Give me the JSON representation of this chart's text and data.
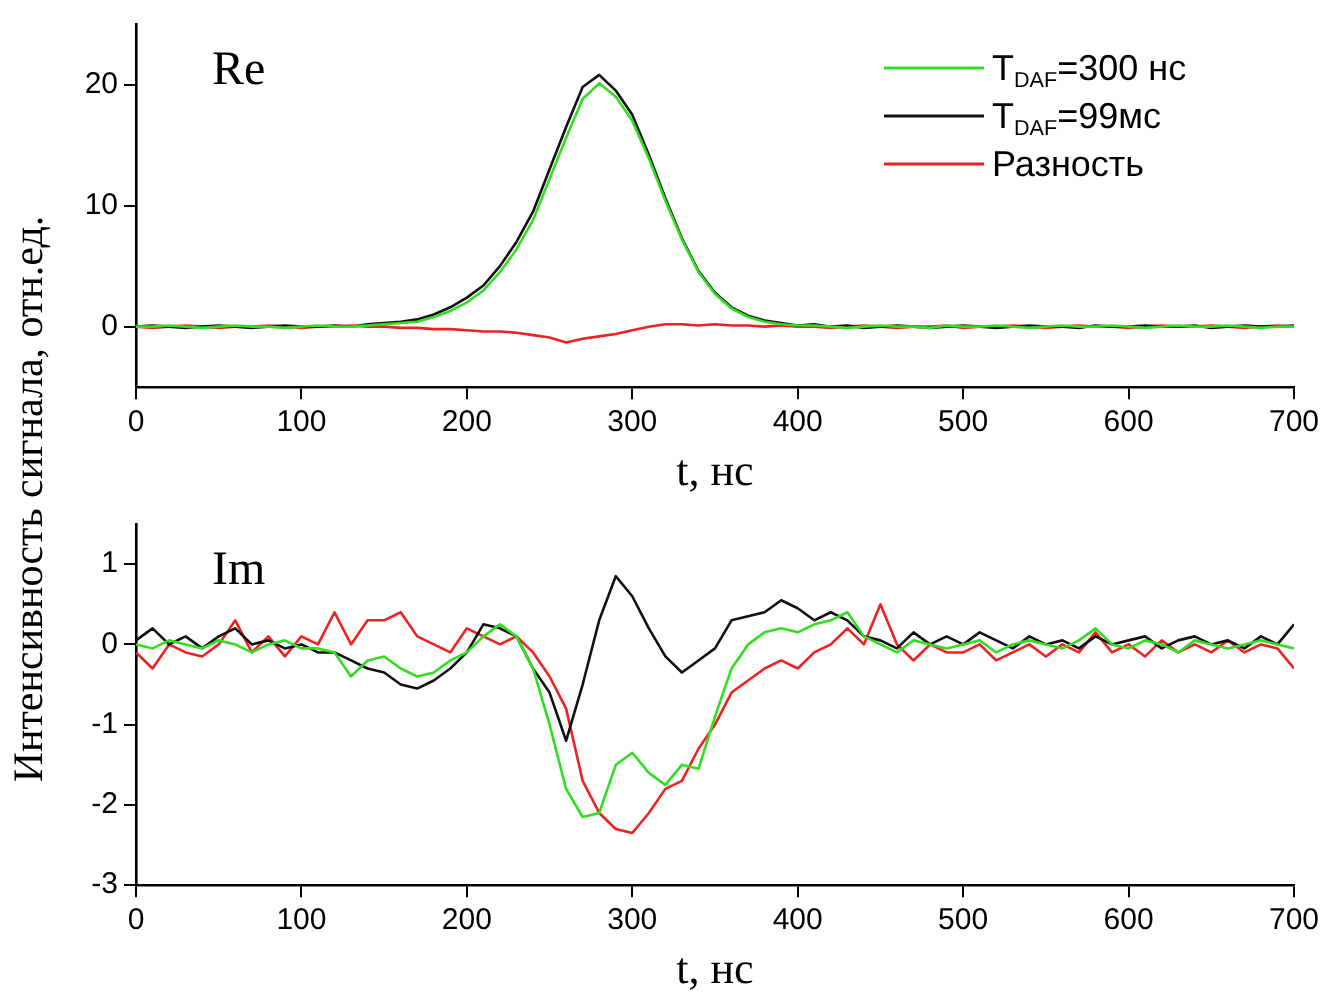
{
  "chart_data": [
    {
      "type": "line",
      "ylabel": "Интенсивность сигнала, отн.ед.",
      "xlabel": "t, нс",
      "annotations": [
        "Re"
      ],
      "legend": "top right",
      "grid": false,
      "marker": "none",
      "x": [
        0,
        10,
        20,
        30,
        40,
        50,
        60,
        70,
        80,
        90,
        100,
        110,
        120,
        130,
        140,
        150,
        160,
        170,
        180,
        190,
        200,
        210,
        220,
        230,
        240,
        250,
        260,
        270,
        280,
        290,
        300,
        310,
        320,
        330,
        340,
        350,
        360,
        370,
        380,
        390,
        400,
        410,
        420,
        430,
        440,
        450,
        460,
        470,
        480,
        490,
        500,
        510,
        520,
        530,
        540,
        550,
        560,
        570,
        580,
        590,
        600,
        610,
        620,
        630,
        640,
        650,
        660,
        670,
        680,
        690,
        700
      ],
      "xlim": [
        0,
        700
      ],
      "xticks": [
        0,
        100,
        200,
        300,
        400,
        500,
        600,
        700
      ],
      "ylim": [
        -5,
        25
      ],
      "yticks": [
        0,
        10,
        20
      ],
      "series": [
        {
          "name": "T$_{DAF}$=300 нс",
          "color": "#33dd22",
          "values": [
            0,
            0,
            0.1,
            0,
            -0.1,
            0,
            0.1,
            0,
            0,
            -0.1,
            0,
            0.1,
            0,
            0,
            0.1,
            0.2,
            0.3,
            0.4,
            0.8,
            1.3,
            2.0,
            3.0,
            4.5,
            6.4,
            8.8,
            12.2,
            15.6,
            18.8,
            20.1,
            19.0,
            17.0,
            13.9,
            10.4,
            7.2,
            4.5,
            2.7,
            1.5,
            0.8,
            0.4,
            0.2,
            0.1,
            0.1,
            0,
            -0.1,
            0,
            0.1,
            0,
            0,
            -0.1,
            0.1,
            0,
            0,
            0.1,
            0,
            -0.1,
            0,
            0.1,
            0,
            0,
            0.1,
            0,
            -0.1,
            0,
            0.1,
            0,
            0,
            0.1,
            0,
            -0.1,
            0,
            0
          ]
        },
        {
          "name": "T$_{DAF}$=99мс",
          "color": "#111111",
          "values": [
            0,
            0.1,
            0,
            -0.1,
            0,
            0.1,
            0,
            -0.1,
            0,
            0.1,
            0,
            0,
            0.1,
            0,
            0.2,
            0.3,
            0.4,
            0.6,
            1.0,
            1.6,
            2.4,
            3.4,
            5.0,
            7.0,
            9.5,
            13.0,
            16.5,
            19.8,
            20.8,
            19.5,
            17.5,
            14.2,
            10.6,
            7.3,
            4.6,
            2.8,
            1.6,
            0.9,
            0.5,
            0.3,
            0.1,
            0.2,
            0,
            0.1,
            -0.1,
            0,
            0.1,
            0,
            -0.1,
            0,
            0.1,
            0,
            -0.1,
            0,
            0.1,
            0,
            0,
            -0.1,
            0.1,
            0,
            0,
            0.1,
            0,
            0,
            0.1,
            -0.1,
            0,
            0.1,
            0,
            0,
            0.1
          ]
        },
        {
          "name": "Разность",
          "color": "#ee2222",
          "values": [
            0,
            -0.1,
            0,
            0.1,
            0,
            -0.1,
            0,
            0,
            0.1,
            0,
            -0.1,
            0,
            0,
            0.1,
            0,
            0,
            -0.1,
            -0.1,
            -0.2,
            -0.2,
            -0.3,
            -0.4,
            -0.4,
            -0.5,
            -0.7,
            -0.9,
            -1.3,
            -1.0,
            -0.8,
            -0.6,
            -0.3,
            0.0,
            0.2,
            0.2,
            0.1,
            0.2,
            0.1,
            0.1,
            0.0,
            0.1,
            0.0,
            0,
            -0.1,
            0,
            0.1,
            0,
            -0.1,
            0,
            0,
            0.1,
            -0.1,
            0,
            0,
            0.1,
            0,
            -0.1,
            0,
            0.1,
            0,
            0,
            -0.1,
            0,
            0.1,
            0,
            0,
            0.1,
            0,
            -0.1,
            0,
            0.1,
            0
          ]
        }
      ]
    },
    {
      "type": "line",
      "xlabel": "t, нс",
      "annotations": [
        "Im"
      ],
      "grid": false,
      "marker": "none",
      "x": [
        0,
        10,
        20,
        30,
        40,
        50,
        60,
        70,
        80,
        90,
        100,
        110,
        120,
        130,
        140,
        150,
        160,
        170,
        180,
        190,
        200,
        210,
        220,
        230,
        240,
        250,
        260,
        270,
        280,
        290,
        300,
        310,
        320,
        330,
        340,
        350,
        360,
        370,
        380,
        390,
        400,
        410,
        420,
        430,
        440,
        450,
        460,
        470,
        480,
        490,
        500,
        510,
        520,
        530,
        540,
        550,
        560,
        570,
        580,
        590,
        600,
        610,
        620,
        630,
        640,
        650,
        660,
        670,
        680,
        690,
        700
      ],
      "xlim": [
        0,
        700
      ],
      "xticks": [
        0,
        100,
        200,
        300,
        400,
        500,
        600,
        700
      ],
      "ylim": [
        -3,
        1.5
      ],
      "yticks": [
        -3,
        -2,
        -1,
        0,
        1
      ],
      "series": [
        {
          "color": "#33dd22",
          "values": [
            0.0,
            -0.05,
            0.05,
            0.0,
            -0.05,
            0.05,
            0.0,
            -0.1,
            0.0,
            0.05,
            -0.05,
            -0.05,
            -0.1,
            -0.4,
            -0.2,
            -0.15,
            -0.3,
            -0.4,
            -0.35,
            -0.2,
            -0.1,
            0.1,
            0.25,
            0.1,
            -0.3,
            -1.0,
            -1.8,
            -2.15,
            -2.1,
            -1.5,
            -1.35,
            -1.6,
            -1.75,
            -1.5,
            -1.55,
            -0.9,
            -0.3,
            0.0,
            0.15,
            0.2,
            0.15,
            0.25,
            0.3,
            0.4,
            0.1,
            0.0,
            -0.1,
            0.05,
            0.0,
            -0.05,
            0.0,
            0.05,
            -0.1,
            0.0,
            0.05,
            0.0,
            -0.05,
            0.05,
            0.2,
            0.0,
            -0.05,
            0.05,
            0.0,
            -0.1,
            0.05,
            0.0,
            -0.05,
            0.0,
            0.05,
            0.0,
            -0.05
          ]
        },
        {
          "color": "#111111",
          "values": [
            0.05,
            0.2,
            0.0,
            0.1,
            -0.05,
            0.1,
            0.2,
            0.0,
            0.05,
            -0.05,
            0.0,
            -0.1,
            -0.1,
            -0.2,
            -0.3,
            -0.35,
            -0.5,
            -0.55,
            -0.45,
            -0.3,
            -0.1,
            0.25,
            0.2,
            0.1,
            -0.3,
            -0.6,
            -1.2,
            -0.5,
            0.3,
            0.85,
            0.6,
            0.2,
            -0.15,
            -0.35,
            -0.2,
            -0.05,
            0.3,
            0.35,
            0.4,
            0.55,
            0.45,
            0.3,
            0.4,
            0.3,
            0.1,
            0.05,
            -0.05,
            0.15,
            0.0,
            0.1,
            0.0,
            0.15,
            0.05,
            -0.05,
            0.1,
            0.0,
            0.05,
            -0.05,
            0.1,
            0.0,
            0.05,
            0.1,
            -0.05,
            0.05,
            0.1,
            0.0,
            0.05,
            -0.05,
            0.1,
            0.0,
            0.25
          ]
        },
        {
          "color": "#ee2222",
          "values": [
            -0.1,
            -0.3,
            0.0,
            -0.1,
            -0.15,
            0.0,
            0.3,
            -0.1,
            0.1,
            -0.15,
            0.1,
            0.0,
            0.4,
            0.0,
            0.3,
            0.3,
            0.4,
            0.1,
            0.0,
            -0.1,
            0.2,
            0.1,
            0.0,
            0.1,
            -0.1,
            -0.4,
            -0.8,
            -1.7,
            -2.1,
            -2.3,
            -2.35,
            -2.1,
            -1.8,
            -1.7,
            -1.3,
            -1.0,
            -0.6,
            -0.45,
            -0.3,
            -0.2,
            -0.3,
            -0.1,
            0.0,
            0.2,
            0.0,
            0.5,
            0.0,
            -0.2,
            0.0,
            -0.1,
            -0.1,
            0.0,
            -0.2,
            -0.1,
            0.0,
            -0.15,
            0.0,
            -0.1,
            0.15,
            -0.1,
            0.0,
            -0.15,
            0.05,
            -0.1,
            0.0,
            -0.1,
            0.05,
            -0.1,
            0.0,
            -0.05,
            -0.3
          ]
        }
      ]
    }
  ]
}
